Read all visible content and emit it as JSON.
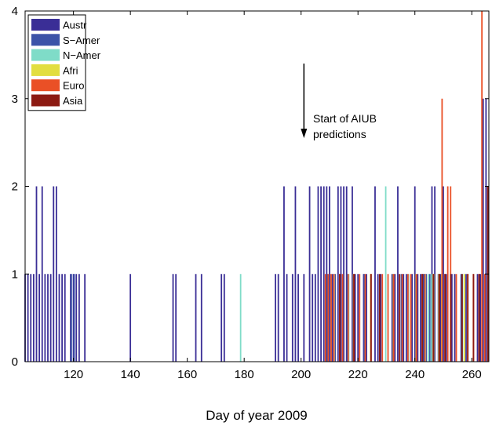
{
  "chart_data": {
    "type": "bar",
    "xlabel": "Day of year 2009",
    "ylabel": "",
    "xlim": [
      103,
      266
    ],
    "ylim": [
      0,
      4
    ],
    "xticks": [
      120,
      140,
      160,
      180,
      200,
      220,
      240,
      260
    ],
    "yticks": [
      0,
      1,
      2,
      3,
      4
    ],
    "grid": false,
    "legend_position": "top-left",
    "annotation": {
      "lines": [
        "Start of AIUB",
        "predictions"
      ],
      "arrow_x": 201,
      "arrow_y_from": 3.4,
      "arrow_y_to": 2.55
    },
    "series": [
      {
        "name": "Austr",
        "color": "#3a2e96",
        "points": [
          [
            103,
            1
          ],
          [
            104,
            1
          ],
          [
            105,
            1
          ],
          [
            106,
            1
          ],
          [
            107,
            2
          ],
          [
            108,
            1
          ],
          [
            109,
            2
          ],
          [
            110,
            1
          ],
          [
            111,
            1
          ],
          [
            112,
            1
          ],
          [
            113,
            2
          ],
          [
            114,
            2
          ],
          [
            115,
            1
          ],
          [
            116,
            1
          ],
          [
            117,
            1
          ],
          [
            119,
            1
          ],
          [
            120,
            1
          ],
          [
            121,
            1
          ],
          [
            122,
            1
          ],
          [
            124,
            1
          ],
          [
            140,
            1
          ],
          [
            155,
            1
          ],
          [
            156,
            1
          ],
          [
            163,
            1
          ],
          [
            165,
            1
          ],
          [
            172,
            1
          ],
          [
            173,
            1
          ],
          [
            191,
            1
          ],
          [
            192,
            1
          ],
          [
            194,
            2
          ],
          [
            195,
            1
          ],
          [
            197,
            1
          ],
          [
            198,
            2
          ],
          [
            199,
            1
          ],
          [
            201,
            1
          ],
          [
            203,
            2
          ],
          [
            204,
            1
          ],
          [
            205,
            1
          ],
          [
            206,
            2
          ],
          [
            207,
            2
          ],
          [
            208,
            2
          ],
          [
            209,
            2
          ],
          [
            210,
            2
          ],
          [
            211,
            1
          ],
          [
            212,
            1
          ],
          [
            213,
            2
          ],
          [
            214,
            2
          ],
          [
            215,
            2
          ],
          [
            216,
            2
          ],
          [
            218,
            2
          ],
          [
            219,
            1
          ],
          [
            220,
            1
          ],
          [
            222,
            1
          ],
          [
            223,
            1
          ],
          [
            226,
            2
          ],
          [
            227,
            1
          ],
          [
            228,
            1
          ],
          [
            232,
            1
          ],
          [
            233,
            1
          ],
          [
            234,
            2
          ],
          [
            236,
            1
          ],
          [
            237,
            1
          ],
          [
            239,
            1
          ],
          [
            240,
            2
          ],
          [
            241,
            1
          ],
          [
            242,
            1
          ],
          [
            243,
            1
          ],
          [
            244,
            1
          ],
          [
            246,
            2
          ],
          [
            247,
            2
          ],
          [
            249,
            1
          ],
          [
            250,
            2
          ],
          [
            251,
            1
          ],
          [
            253,
            1
          ],
          [
            254,
            1
          ],
          [
            258,
            1
          ],
          [
            262,
            1
          ],
          [
            263,
            1
          ],
          [
            264,
            3
          ],
          [
            265,
            3
          ]
        ]
      },
      {
        "name": "S−Amer",
        "color": "#3c53a8",
        "points": [
          [
            119,
            1
          ],
          [
            120,
            1
          ],
          [
            209,
            1
          ],
          [
            216,
            1
          ],
          [
            222,
            1
          ],
          [
            235,
            1
          ],
          [
            243,
            1
          ],
          [
            245,
            1
          ],
          [
            248,
            1
          ],
          [
            256,
            1
          ]
        ]
      },
      {
        "name": "N−Amer",
        "color": "#7fdcc8",
        "points": [
          [
            179,
            1
          ],
          [
            212,
            1
          ],
          [
            217,
            1
          ],
          [
            230,
            2
          ],
          [
            238,
            1
          ],
          [
            244,
            1
          ],
          [
            245,
            1
          ],
          [
            246,
            1
          ],
          [
            247,
            1
          ],
          [
            257,
            1
          ]
        ]
      },
      {
        "name": "Afri",
        "color": "#e2de40",
        "points": [
          [
            218,
            1
          ],
          [
            224,
            1
          ],
          [
            232,
            1
          ],
          [
            240,
            1
          ],
          [
            246,
            1
          ],
          [
            248,
            1
          ],
          [
            249,
            1
          ],
          [
            257,
            1
          ]
        ]
      },
      {
        "name": "Euro",
        "color": "#ea5026",
        "points": [
          [
            209,
            1
          ],
          [
            210,
            1
          ],
          [
            211,
            1
          ],
          [
            212,
            1
          ],
          [
            214,
            1
          ],
          [
            215,
            1
          ],
          [
            217,
            1
          ],
          [
            219,
            1
          ],
          [
            221,
            1
          ],
          [
            223,
            1
          ],
          [
            225,
            1
          ],
          [
            229,
            1
          ],
          [
            231,
            1
          ],
          [
            233,
            1
          ],
          [
            236,
            1
          ],
          [
            238,
            1
          ],
          [
            239,
            1
          ],
          [
            241,
            1
          ],
          [
            243,
            1
          ],
          [
            244,
            1
          ],
          [
            247,
            1
          ],
          [
            249,
            1
          ],
          [
            250,
            3
          ],
          [
            251,
            1
          ],
          [
            252,
            2
          ],
          [
            253,
            2
          ],
          [
            255,
            1
          ],
          [
            259,
            1
          ],
          [
            261,
            1
          ],
          [
            263,
            1
          ],
          [
            264,
            4
          ],
          [
            265,
            1
          ]
        ]
      },
      {
        "name": "Asia",
        "color": "#8c1a12",
        "points": [
          [
            213,
            1
          ],
          [
            218,
            1
          ],
          [
            224,
            1
          ],
          [
            227,
            1
          ],
          [
            234,
            1
          ],
          [
            242,
            1
          ],
          [
            246,
            1
          ],
          [
            248,
            1
          ],
          [
            250,
            1
          ],
          [
            252,
            1
          ],
          [
            256,
            1
          ],
          [
            258,
            1
          ],
          [
            260,
            1
          ],
          [
            262,
            1
          ],
          [
            265,
            2
          ]
        ]
      }
    ]
  }
}
